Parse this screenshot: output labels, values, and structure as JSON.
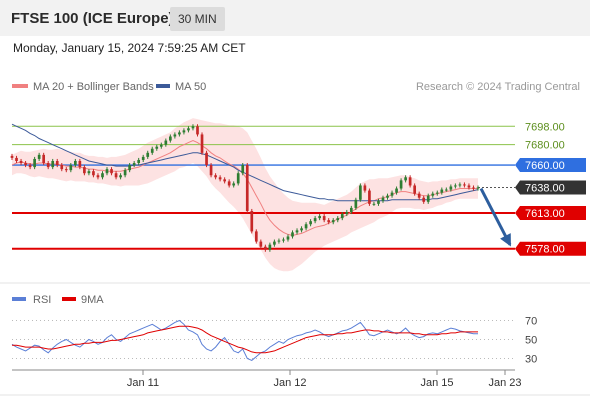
{
  "header": {
    "title": "FTSE 100 (ICE Europe)",
    "timeframe": "30 MIN"
  },
  "datetime": "Monday, January 15, 2024 7:59:25 AM CET",
  "legend": {
    "ma20_label": "MA 20 + Bollinger Bands",
    "ma50_label": "MA 50",
    "ma20_color": "#f08080",
    "ma50_color": "#3c5a99",
    "credit": "Research © 2024 Trading Central"
  },
  "rsi_legend": {
    "rsi_label": "RSI",
    "rsi_color": "#5b7fd6",
    "ma_label": "9MA",
    "ma_color": "#e00000"
  },
  "colors": {
    "up": "#2e7d32",
    "down": "#c62828",
    "support": "#e00000",
    "resistance_blue": "#2f6fe0",
    "resistance_green": "#8bc34a",
    "arrow": "#2d5e9e",
    "band": "#fde2e2"
  },
  "chart_data": [
    {
      "type": "candlestick",
      "ylim": [
        7565,
        7712
      ],
      "x_ticks": [
        "Jan 11",
        "Jan 12",
        "Jan 15",
        "Jan 23"
      ],
      "levels": [
        {
          "value": 7698.0,
          "label": "7698.00",
          "style": "resistance-green"
        },
        {
          "value": 7680.0,
          "label": "7680.00",
          "style": "resistance-green"
        },
        {
          "value": 7660.0,
          "label": "7660.00",
          "style": "resistance-blue"
        },
        {
          "value": 7638.0,
          "label": "7638.00",
          "style": "last-price"
        },
        {
          "value": 7613.0,
          "label": "7613.00",
          "style": "support-red"
        },
        {
          "value": 7578.0,
          "label": "7578.00",
          "style": "support-red"
        }
      ],
      "close": [
        7667,
        7664,
        7662,
        7660,
        7658,
        7666,
        7670,
        7662,
        7658,
        7664,
        7660,
        7656,
        7655,
        7660,
        7664,
        7658,
        7652,
        7654,
        7650,
        7648,
        7652,
        7656,
        7652,
        7648,
        7650,
        7655,
        7660,
        7662,
        7665,
        7668,
        7672,
        7676,
        7678,
        7680,
        7684,
        7688,
        7690,
        7692,
        7694,
        7696,
        7698,
        7690,
        7672,
        7660,
        7650,
        7648,
        7646,
        7644,
        7640,
        7642,
        7652,
        7660,
        7615,
        7595,
        7585,
        7580,
        7577,
        7582,
        7585,
        7586,
        7587,
        7590,
        7594,
        7596,
        7598,
        7602,
        7605,
        7608,
        7610,
        7606,
        7604,
        7606,
        7608,
        7612,
        7614,
        7618,
        7626,
        7640,
        7635,
        7622,
        7622,
        7625,
        7628,
        7630,
        7633,
        7637,
        7645,
        7648,
        7640,
        7632,
        7628,
        7624,
        7630,
        7632,
        7633,
        7636,
        7636,
        7639,
        7640,
        7641,
        7640,
        7638,
        7637,
        7638
      ],
      "ma20": [
        7660,
        7662,
        7663,
        7662,
        7661,
        7661,
        7662,
        7662,
        7661,
        7661,
        7661,
        7660,
        7659,
        7659,
        7658,
        7658,
        7657,
        7656,
        7656,
        7655,
        7655,
        7654,
        7654,
        7654,
        7654,
        7655,
        7656,
        7657,
        7658,
        7660,
        7662,
        7664,
        7666,
        7668,
        7670,
        7672,
        7675,
        7678,
        7680,
        7682,
        7684,
        7682,
        7679,
        7676,
        7672,
        7669,
        7667,
        7664,
        7661,
        7659,
        7656,
        7652,
        7646,
        7638,
        7630,
        7622,
        7613,
        7606,
        7601,
        7597,
        7594,
        7592,
        7591,
        7592,
        7593,
        7595,
        7597,
        7599,
        7600,
        7601,
        7603,
        7605,
        7607,
        7609,
        7611,
        7614,
        7617,
        7620,
        7622,
        7624,
        7625,
        7627,
        7628,
        7629,
        7631,
        7633,
        7634,
        7634,
        7633,
        7632,
        7631,
        7630,
        7630,
        7631,
        7632,
        7633,
        7634,
        7635,
        7636,
        7637,
        7637,
        7637,
        7637,
        7637
      ],
      "ma50": [
        7700,
        7698,
        7696,
        7694,
        7691,
        7689,
        7686,
        7684,
        7682,
        7680,
        7678,
        7676,
        7674,
        7672,
        7670,
        7668,
        7666,
        7664,
        7663,
        7662,
        7661,
        7660,
        7660,
        7659,
        7659,
        7659,
        7659,
        7660,
        7660,
        7661,
        7662,
        7663,
        7664,
        7665,
        7666,
        7667,
        7668,
        7669,
        7670,
        7671,
        7672,
        7672,
        7671,
        7670,
        7668,
        7666,
        7664,
        7662,
        7660,
        7658,
        7655,
        7653,
        7651,
        7649,
        7647,
        7645,
        7643,
        7641,
        7639,
        7637,
        7635,
        7634,
        7633,
        7632,
        7631,
        7630,
        7629,
        7628,
        7627,
        7627,
        7626,
        7626,
        7625,
        7625,
        7625,
        7625,
        7625,
        7625,
        7625,
        7625,
        7625,
        7625,
        7625,
        7625,
        7626,
        7626,
        7626,
        7626,
        7626,
        7626,
        7626,
        7626,
        7626,
        7627,
        7627,
        7628,
        7629,
        7630,
        7631,
        7632,
        7633,
        7634,
        7635,
        7636
      ],
      "band_width": [
        10,
        10,
        11,
        11,
        12,
        13,
        13,
        14,
        14,
        14,
        15,
        15,
        15,
        14,
        14,
        14,
        13,
        13,
        13,
        13,
        13,
        13,
        14,
        14,
        15,
        15,
        16,
        17,
        18,
        19,
        20,
        20,
        20,
        20,
        20,
        20,
        21,
        21,
        22,
        22,
        22,
        23,
        25,
        27,
        30,
        32,
        34,
        36,
        38,
        40,
        42,
        44,
        46,
        46,
        46,
        45,
        44,
        43,
        42,
        40,
        38,
        36,
        34,
        32,
        30,
        28,
        26,
        24,
        22,
        20,
        20,
        20,
        20,
        20,
        20,
        20,
        21,
        22,
        22,
        22,
        21,
        20,
        19,
        18,
        17,
        16,
        16,
        16,
        15,
        15,
        14,
        14,
        13,
        13,
        12,
        12,
        11,
        11,
        10,
        10,
        10,
        10,
        10,
        10
      ],
      "forecast": {
        "from": 7637,
        "to": 7578
      }
    },
    {
      "type": "line",
      "ylim": [
        20,
        80
      ],
      "y_ticks": [
        "70",
        "50",
        "30"
      ],
      "x_ticks": [
        "Jan 11",
        "Jan 12",
        "Jan 15",
        "Jan 23"
      ],
      "series": [
        {
          "name": "RSI",
          "values": [
            45,
            42,
            40,
            38,
            41,
            44,
            43,
            39,
            36,
            41,
            45,
            48,
            50,
            47,
            44,
            42,
            46,
            50,
            48,
            45,
            47,
            52,
            55,
            50,
            48,
            52,
            56,
            58,
            60,
            62,
            64,
            66,
            63,
            60,
            62,
            65,
            68,
            70,
            66,
            60,
            58,
            55,
            45,
            40,
            38,
            42,
            48,
            52,
            45,
            38,
            36,
            40,
            30,
            28,
            32,
            36,
            38,
            42,
            45,
            48,
            46,
            50,
            52,
            54,
            55,
            57,
            58,
            60,
            58,
            55,
            53,
            55,
            57,
            59,
            60,
            62,
            65,
            68,
            62,
            55,
            54,
            56,
            58,
            60,
            58,
            56,
            58,
            62,
            57,
            54,
            52,
            53,
            56,
            57,
            56,
            58,
            60,
            62,
            61,
            59,
            58,
            57,
            56,
            56
          ]
        },
        {
          "name": "9MA",
          "values": [
            44,
            44,
            43,
            42,
            42,
            42,
            42,
            41,
            40,
            40,
            41,
            42,
            43,
            44,
            45,
            45,
            46,
            46,
            47,
            47,
            47,
            48,
            49,
            49,
            50,
            51,
            52,
            53,
            54,
            55,
            57,
            58,
            59,
            60,
            61,
            62,
            63,
            64,
            64,
            64,
            63,
            62,
            60,
            57,
            54,
            52,
            50,
            48,
            46,
            44,
            42,
            41,
            39,
            37,
            36,
            36,
            36,
            37,
            38,
            40,
            42,
            44,
            46,
            48,
            50,
            52,
            53,
            54,
            55,
            55,
            55,
            55,
            56,
            56,
            57,
            57,
            58,
            59,
            60,
            60,
            59,
            59,
            58,
            58,
            57,
            57,
            57,
            57,
            57,
            56,
            56,
            55,
            55,
            55,
            55,
            56,
            56,
            57,
            57,
            58,
            58,
            58,
            58,
            58
          ]
        }
      ]
    }
  ]
}
